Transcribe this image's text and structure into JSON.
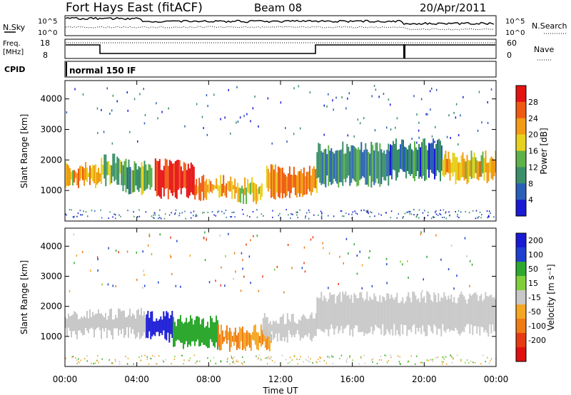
{
  "header": {
    "site": "Fort Hays East (fitACF)",
    "beam": "Beam 08",
    "date": "20/Apr/2011"
  },
  "noise_panel": {
    "left_label": "N.Sky",
    "right_label": "N.Search",
    "left_ticks": [
      "10^5",
      "10^0"
    ],
    "right_ticks": [
      "10^5",
      "10^0"
    ]
  },
  "freq_panel": {
    "left_label_1": "Freq.",
    "left_label_2": "[MHz]",
    "left_ticks": [
      "18",
      "8"
    ],
    "right_label": "Nave",
    "right_ticks": [
      "60",
      "0"
    ]
  },
  "cpid_panel": {
    "label": "CPID",
    "mode": "normal 150 IF"
  },
  "colors": {
    "power_scale": [
      "#1a1ad6",
      "#2a5fb8",
      "#3a8f6a",
      "#5fb24a",
      "#e6d21e",
      "#f39b14",
      "#ef5a12",
      "#e51212"
    ],
    "velocity_scale": [
      "#1a1ad6",
      "#1f3fd0",
      "#2fa82f",
      "#7fcf3a",
      "#c8c8c8",
      "#f5a623",
      "#f07a14",
      "#e83a12",
      "#e01010"
    ]
  },
  "chart_data": [
    {
      "type": "heatmap",
      "name": "power",
      "xlabel": "Time UT",
      "ylabel": "Slant Range [km]",
      "xlim": [
        0,
        24
      ],
      "ylim": [
        0,
        4600
      ],
      "x_ticks": [
        "00:00",
        "04:00",
        "08:00",
        "12:00",
        "16:00",
        "20:00",
        "00:00"
      ],
      "y_ticks": [
        "1000",
        "2000",
        "3000",
        "4000"
      ],
      "colorbar_label": "Power [dB]",
      "colorbar_ticks": [
        "4",
        "8",
        "12",
        "16",
        "20",
        "24",
        "28"
      ],
      "colorbar_range": [
        0,
        32
      ],
      "regions": [
        {
          "t0": 0.0,
          "t1": 2.0,
          "r0": 1250,
          "r1": 1750,
          "value": 20
        },
        {
          "t0": 2.0,
          "t1": 3.2,
          "r0": 1350,
          "r1": 2000,
          "value": 14
        },
        {
          "t0": 3.2,
          "t1": 4.8,
          "r0": 1050,
          "r1": 1850,
          "value": 12
        },
        {
          "t0": 5.0,
          "t1": 7.2,
          "r0": 900,
          "r1": 1850,
          "value": 30
        },
        {
          "t0": 7.2,
          "t1": 9.5,
          "r0": 850,
          "r1": 1350,
          "value": 22
        },
        {
          "t0": 9.5,
          "t1": 11.0,
          "r0": 750,
          "r1": 1250,
          "value": 18
        },
        {
          "t0": 11.2,
          "t1": 14.0,
          "r0": 900,
          "r1": 1650,
          "value": 24
        },
        {
          "t0": 14.0,
          "t1": 18.0,
          "r0": 1300,
          "r1": 2400,
          "value": 10
        },
        {
          "t0": 18.0,
          "t1": 21.0,
          "r0": 1500,
          "r1": 2500,
          "value": 8
        },
        {
          "t0": 21.0,
          "t1": 24.0,
          "r0": 1400,
          "r1": 2100,
          "value": 20
        }
      ]
    },
    {
      "type": "heatmap",
      "name": "velocity",
      "xlabel": "Time UT",
      "ylabel": "Slant Range [km]",
      "xlim": [
        0,
        24
      ],
      "ylim": [
        0,
        4600
      ],
      "x_ticks": [
        "00:00",
        "04:00",
        "08:00",
        "12:00",
        "16:00",
        "20:00",
        "00:00"
      ],
      "y_ticks": [
        "1000",
        "2000",
        "3000",
        "4000"
      ],
      "colorbar_label": "Velocity [m s⁻¹]",
      "colorbar_ticks": [
        "200",
        "100",
        "50",
        "15",
        "-15",
        "-50",
        "-100",
        "-200"
      ],
      "regions": [
        {
          "t0": 0.0,
          "t1": 4.5,
          "r0": 1100,
          "r1": 1750,
          "value": 0
        },
        {
          "t0": 4.5,
          "t1": 6.0,
          "r0": 1000,
          "r1": 1700,
          "value": 200
        },
        {
          "t0": 6.0,
          "t1": 8.5,
          "r0": 700,
          "r1": 1500,
          "value": 60
        },
        {
          "t0": 8.5,
          "t1": 11.5,
          "r0": 700,
          "r1": 1200,
          "value": -50
        },
        {
          "t0": 11.0,
          "t1": 14.0,
          "r0": 1000,
          "r1": 1600,
          "value": 0
        },
        {
          "t0": 14.0,
          "t1": 24.0,
          "r0": 1200,
          "r1": 2300,
          "value": 0
        }
      ]
    }
  ],
  "footer": {
    "xlabel": "Time UT"
  }
}
